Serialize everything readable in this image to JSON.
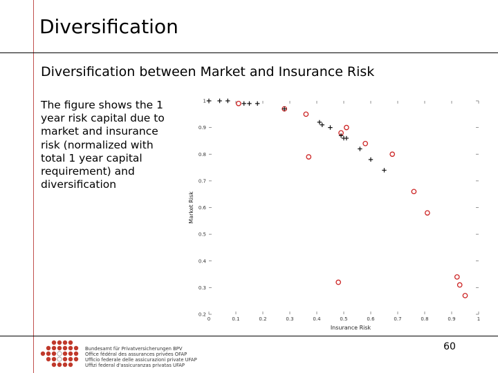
{
  "slide": {
    "title": "Diversification",
    "subtitle": "Diversification between Market and Insurance Risk",
    "description": "The figure shows the 1 year risk capital due to market and insurance risk (normalized with total 1 year capital requirement) and diversification",
    "page_number": "60"
  },
  "footer": {
    "org_lines": [
      "Bundesamt für Privatversicherungen BPV",
      "Office fédéral des assurances privées OFAP",
      "Ufficio federale delle assicurazioni private UFAP",
      "Uffizi federal d'assicuranzas privatas UFAP"
    ]
  },
  "colors": {
    "accent": "#c0504d",
    "circle": "#cc2222",
    "plus": "#111111"
  },
  "chart_data": {
    "type": "scatter",
    "xlabel": "Insurance Risk",
    "ylabel": "Market Risk",
    "xlim": [
      0,
      1
    ],
    "ylim": [
      0.2,
      1
    ],
    "x_ticks": [
      "0",
      "0.1",
      "0.2",
      "0.3",
      "0.4",
      "0.5",
      "0.6",
      "0.7",
      "0.8",
      "0.9",
      "1"
    ],
    "y_ticks": [
      "0.2",
      "0.3",
      "0.4",
      "0.5",
      "0.6",
      "0.7",
      "0.8",
      "0.9",
      "1"
    ],
    "series": [
      {
        "name": "circles",
        "marker": "o",
        "x": [
          0.11,
          0.28,
          0.36,
          0.37,
          0.48,
          0.49,
          0.51,
          0.58,
          0.68,
          0.76,
          0.81,
          0.92,
          0.93,
          0.95
        ],
        "y": [
          0.99,
          0.97,
          0.95,
          0.79,
          0.32,
          0.88,
          0.9,
          0.84,
          0.8,
          0.66,
          0.58,
          0.34,
          0.31,
          0.27
        ]
      },
      {
        "name": "pluses",
        "marker": "+",
        "x": [
          0.0,
          0.04,
          0.07,
          0.13,
          0.15,
          0.18,
          0.28,
          0.41,
          0.42,
          0.45,
          0.49,
          0.5,
          0.51,
          0.56,
          0.6,
          0.65
        ],
        "y": [
          1.0,
          1.0,
          1.0,
          0.99,
          0.99,
          0.99,
          0.97,
          0.92,
          0.91,
          0.9,
          0.87,
          0.86,
          0.86,
          0.82,
          0.78,
          0.74
        ]
      }
    ]
  }
}
